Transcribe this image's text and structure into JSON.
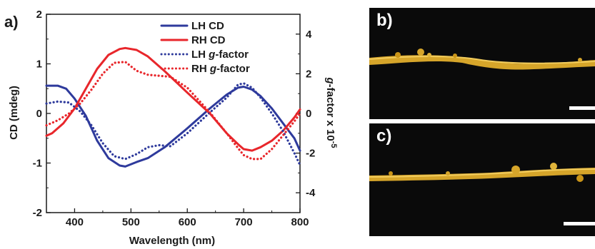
{
  "figure": {
    "panel_a_label": "a)",
    "panel_b_label": "b)",
    "panel_c_label": "c)",
    "colors": {
      "lh": "#2e3a9c",
      "rh": "#e8262b",
      "axis": "#1a1a1a",
      "fiber": "#d6a52a",
      "panel_bg": "#0a0a0a",
      "scale": "#ffffff"
    }
  },
  "chart_data": {
    "type": "line",
    "xlabel": "Wavelength (nm)",
    "ylabel": "CD (mdeg)",
    "y2label_prefix": "g",
    "y2label_suffix": "-factor x 10",
    "y2label_exp": "-5",
    "xlim": [
      350,
      800
    ],
    "ylim": [
      -2,
      2
    ],
    "y2lim": [
      -5,
      5
    ],
    "xticks": [
      "400",
      "500",
      "600",
      "700",
      "800"
    ],
    "yticks": [
      "-2",
      "-1",
      "0",
      "1",
      "2"
    ],
    "y2ticks": [
      "-4",
      "-2",
      "0",
      "2",
      "4"
    ],
    "legend_position": "top-right",
    "series": [
      {
        "name": "LH CD",
        "legend_main": "LH CD",
        "legend_italic": "",
        "legend_tail": "",
        "axis": "left",
        "style": "solid",
        "color": "#2e3a9c",
        "x": [
          350,
          370,
          385,
          400,
          420,
          440,
          460,
          480,
          490,
          510,
          530,
          560,
          600,
          640,
          670,
          690,
          700,
          715,
          730,
          750,
          770,
          790,
          800
        ],
        "y": [
          0.56,
          0.56,
          0.5,
          0.3,
          -0.05,
          -0.55,
          -0.9,
          -1.05,
          -1.07,
          -0.98,
          -0.9,
          -0.68,
          -0.3,
          0.1,
          0.38,
          0.52,
          0.54,
          0.48,
          0.35,
          0.1,
          -0.2,
          -0.5,
          -0.75
        ]
      },
      {
        "name": "RH CD",
        "legend_main": "RH CD",
        "legend_italic": "",
        "legend_tail": "",
        "axis": "left",
        "style": "solid",
        "color": "#e8262b",
        "x": [
          350,
          360,
          380,
          400,
          420,
          440,
          460,
          480,
          490,
          510,
          530,
          560,
          600,
          640,
          670,
          690,
          700,
          715,
          730,
          750,
          770,
          790,
          800
        ],
        "y": [
          -0.45,
          -0.4,
          -0.2,
          0.1,
          0.5,
          0.9,
          1.18,
          1.3,
          1.32,
          1.28,
          1.15,
          0.85,
          0.42,
          0.0,
          -0.4,
          -0.62,
          -0.72,
          -0.75,
          -0.68,
          -0.55,
          -0.35,
          -0.08,
          0.08
        ]
      },
      {
        "name": "LH g-factor",
        "legend_main": "LH ",
        "legend_italic": "g",
        "legend_tail": "-factor",
        "axis": "right",
        "style": "dotted",
        "color": "#2e3a9c",
        "x": [
          350,
          370,
          390,
          410,
          430,
          450,
          470,
          490,
          510,
          530,
          550,
          570,
          600,
          640,
          670,
          690,
          700,
          715,
          730,
          750,
          770,
          790,
          800
        ],
        "y": [
          0.5,
          0.6,
          0.55,
          0.1,
          -0.6,
          -1.5,
          -2.15,
          -2.3,
          -2.05,
          -1.7,
          -1.6,
          -1.65,
          -1.0,
          0.05,
          0.8,
          1.45,
          1.52,
          1.3,
          0.8,
          0.0,
          -0.9,
          -2.0,
          -2.6
        ]
      },
      {
        "name": "RH g-factor",
        "legend_main": "RH ",
        "legend_italic": "g",
        "legend_tail": "-factor",
        "axis": "right",
        "style": "dotted",
        "color": "#e8262b",
        "x": [
          350,
          370,
          390,
          410,
          430,
          450,
          470,
          490,
          510,
          530,
          550,
          570,
          600,
          640,
          670,
          690,
          700,
          715,
          730,
          750,
          770,
          790,
          800
        ],
        "y": [
          -0.6,
          -0.35,
          0.0,
          0.5,
          1.2,
          2.0,
          2.55,
          2.6,
          2.15,
          1.95,
          1.9,
          1.85,
          1.3,
          0.05,
          -1.0,
          -1.75,
          -2.1,
          -2.3,
          -2.3,
          -1.8,
          -1.1,
          -0.4,
          0.0
        ]
      }
    ]
  }
}
